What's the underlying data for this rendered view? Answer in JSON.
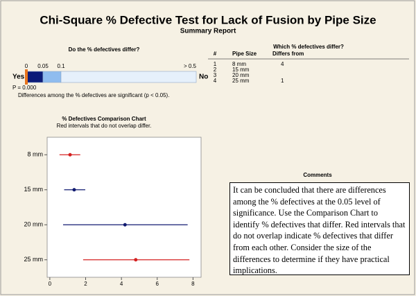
{
  "title": "Chi-Square % Defective Test for Lack of Fusion by Pipe Size",
  "subtitle": "Summary Report",
  "test": {
    "question": "Do the % defectives differ?",
    "scale_ticks": [
      0,
      0.05,
      0.1,
      {
        "value": 0.5,
        "label": "> 0.5"
      }
    ],
    "scale_colors": [
      "#0b1a78",
      "#8fbcef",
      "#e6f0fb"
    ],
    "marker_color": "#e8741c",
    "yes": "Yes",
    "no": "No",
    "p_value": {
      "value": 0,
      "label": "P = 0.000"
    },
    "conclusion": "Differences among the % defectives are significant (p < 0.05)."
  },
  "differ": {
    "title": "Which % defectives differ?",
    "headers": [
      "#",
      "Pipe Size",
      "Differs from"
    ],
    "rows": [
      {
        "number": "1",
        "size": "8 mm",
        "differs_from": "4"
      },
      {
        "number": "2",
        "size": "15 mm"
      },
      {
        "number": "3",
        "size": "20 mm"
      },
      {
        "number": "4",
        "size": "25 mm",
        "differs_from": "1"
      }
    ]
  },
  "comments": {
    "title": "Comments",
    "text": "It can be concluded that there are differences among the % defectives at the 0.05 level of significance. Use the Comparison Chart to identify % defectives that differ. Red intervals that do not overlap indicate % defectives that differ from each other. Consider the size of the differences to determine if they have practical implications."
  },
  "chart_data": {
    "type": "interval",
    "title": "% Defectives Comparison Chart",
    "subtitle": "Red intervals that do not overlap differ.",
    "categories": [
      "8 mm",
      "15 mm",
      "20 mm",
      "25 mm"
    ],
    "values": [
      1.13,
      1.36,
      4.2,
      4.8
    ],
    "lower": [
      0.54,
      0.8,
      0.74,
      1.86
    ],
    "upper": [
      1.7,
      1.98,
      7.7,
      7.8
    ],
    "colors": [
      "#d42020",
      "#101a70",
      "#101a70",
      "#d42020"
    ],
    "xlim": [
      -0.15,
      8.45
    ],
    "xticks": [
      0,
      2,
      4,
      6,
      8
    ]
  }
}
